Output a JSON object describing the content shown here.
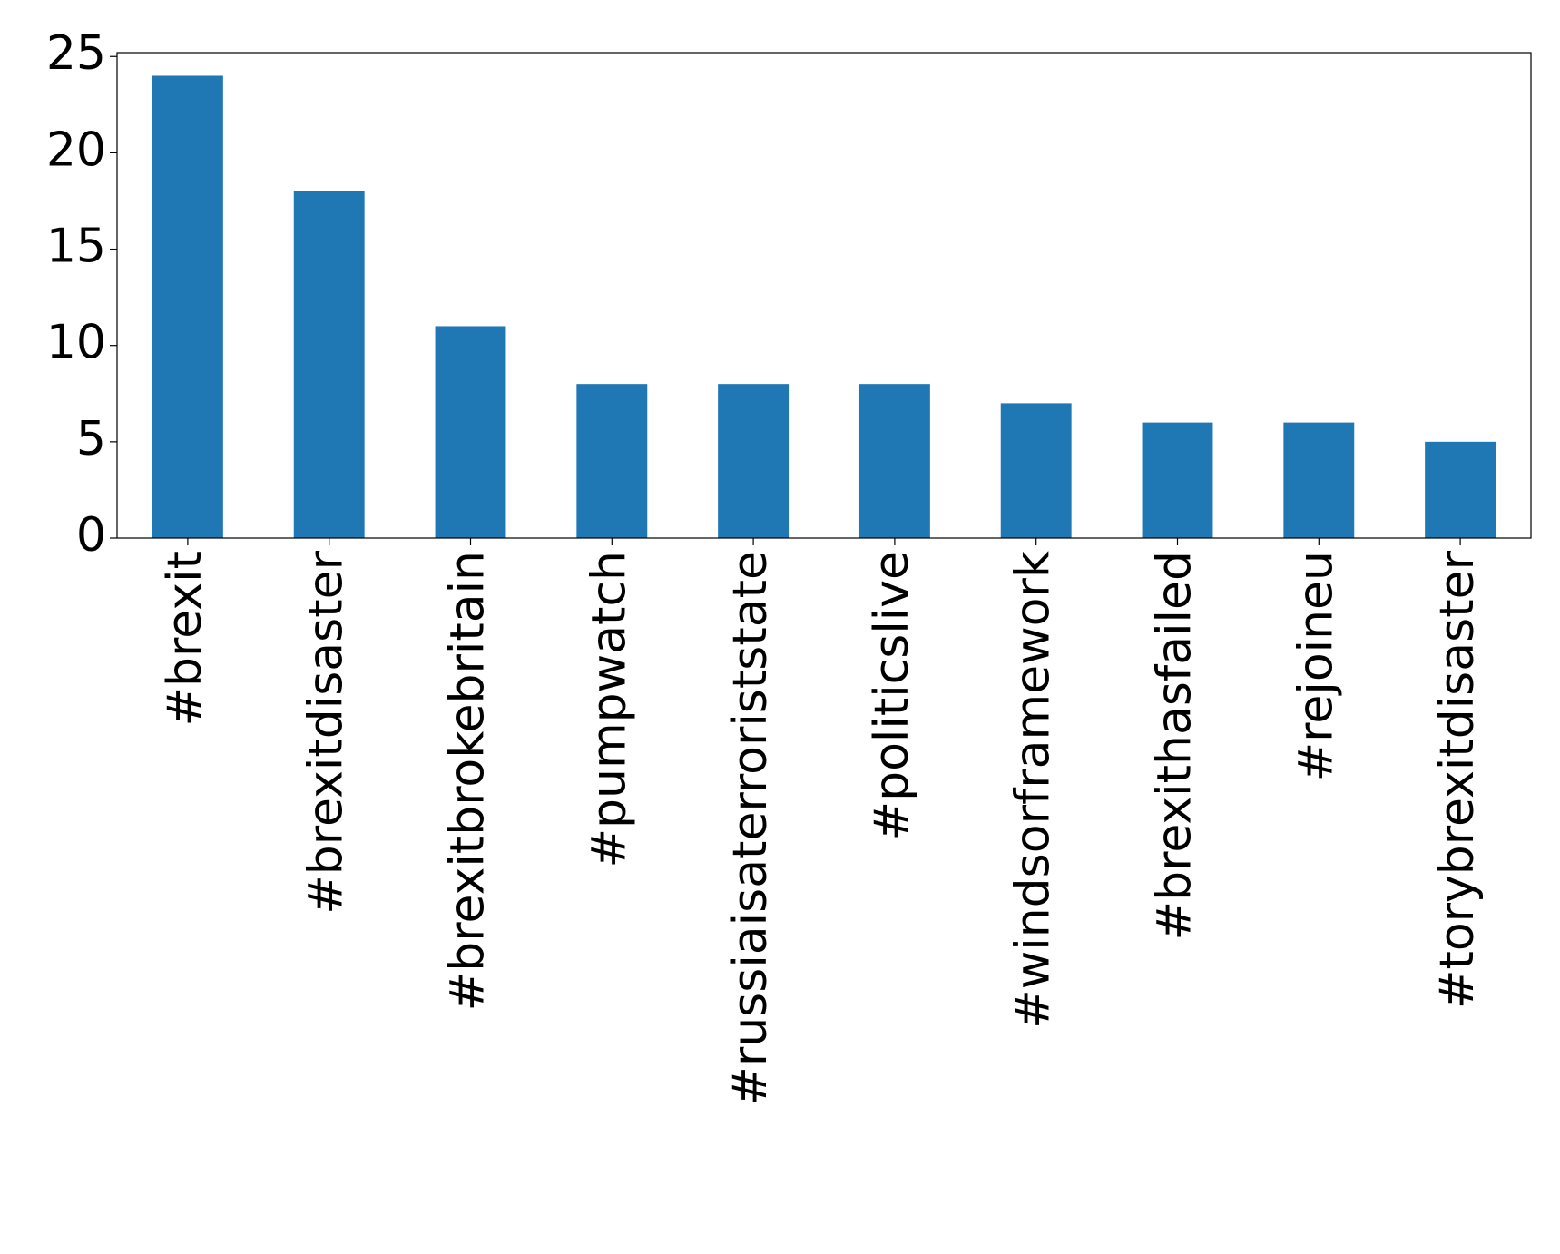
{
  "chart_data": {
    "type": "bar",
    "categories": [
      "#brexit",
      "#brexitdisaster",
      "#brexitbrokebritain",
      "#pumpwatch",
      "#russiaisaterroriststate",
      "#politicslive",
      "#windsorframework",
      "#brexithasfailed",
      "#rejoineu",
      "#torybrexitdisaster"
    ],
    "values": [
      24,
      18,
      11,
      8,
      8,
      8,
      7,
      6,
      6,
      5
    ],
    "color": "#1f77b4",
    "ylim": [
      0,
      25.2
    ],
    "yticks": [
      0,
      5,
      10,
      15,
      20,
      25
    ],
    "grid": false
  }
}
